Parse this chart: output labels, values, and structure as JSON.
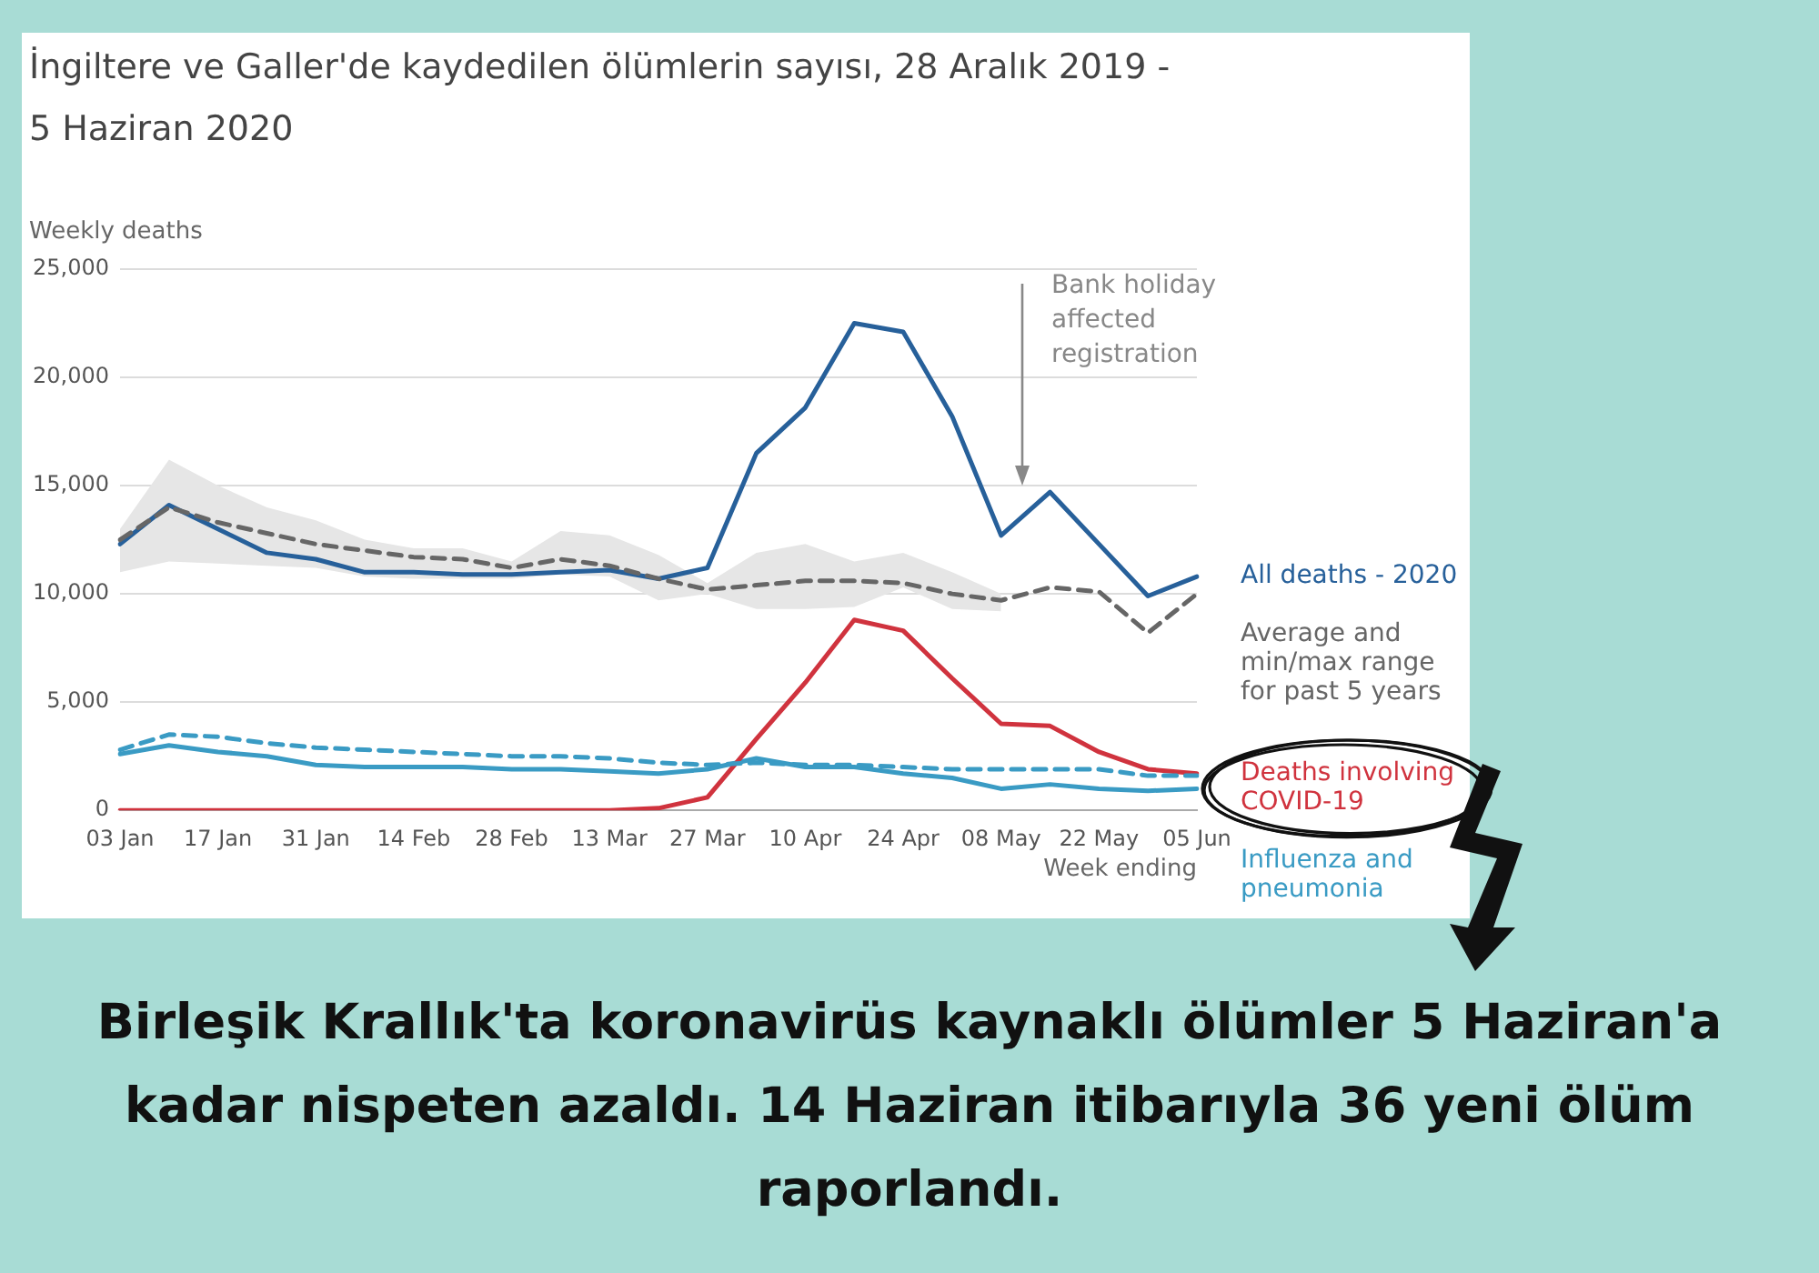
{
  "chart_data": {
    "type": "line",
    "title": "İngiltere ve Galler'de kaydedilen ölümlerin sayısı, 28 Aralık 2019 - 5 Haziran 2020",
    "ylabel": "Weekly deaths",
    "xlabel": "Week ending",
    "categories": [
      "03 Jan",
      null,
      "17 Jan",
      null,
      "31 Jan",
      null,
      "14 Feb",
      null,
      "28 Feb",
      null,
      "13 Mar",
      null,
      "27 Mar",
      null,
      "10 Apr",
      null,
      "24 Apr",
      null,
      "08 May",
      null,
      "22 May",
      null,
      "05 Jun"
    ],
    "series": [
      {
        "name": "Average and min/max range for past 5 years",
        "color": "#666666",
        "line_style": "dashed",
        "values": [
          12500,
          14000,
          13300,
          12800,
          12300,
          12000,
          11700,
          11600,
          11200,
          11600,
          11300,
          10700,
          10200,
          10400,
          10600,
          10600,
          10500,
          10000,
          9700,
          10300,
          10100,
          8200,
          10000
        ],
        "lower": [
          11000,
          11500,
          11400,
          11300,
          11200,
          10800,
          10700,
          10700,
          10700,
          10900,
          10800,
          9700,
          10000,
          9300,
          9300,
          9400,
          10300,
          9300,
          9200,
          null,
          null,
          null,
          null
        ],
        "upper": [
          13000,
          16200,
          15000,
          14000,
          13400,
          12500,
          12100,
          12100,
          11500,
          12900,
          12700,
          11800,
          10500,
          11900,
          12300,
          11500,
          11900,
          11000,
          10000,
          null,
          null,
          null,
          null
        ]
      },
      {
        "color": "#3a9bc4",
        "line_style": "dashed",
        "values": [
          2800,
          3500,
          3400,
          3100,
          2900,
          2800,
          2700,
          2600,
          2500,
          2500,
          2400,
          2200,
          2100,
          2200,
          2100,
          2100,
          2000,
          1900,
          1900,
          1900,
          1900,
          1600,
          1600
        ]
      },
      {
        "name": "All deaths - 2020",
        "color": "#27609a",
        "line_style": "solid",
        "values": [
          12300,
          14100,
          13000,
          11900,
          11600,
          11000,
          11000,
          10900,
          10900,
          11000,
          11100,
          10700,
          11200,
          16500,
          18600,
          22500,
          22100,
          18200,
          12700,
          14700,
          12300,
          9900,
          10800
        ]
      },
      {
        "name": "Deaths involving COVID-19",
        "color": "#d0333e",
        "line_style": "solid",
        "values": [
          0,
          0,
          0,
          0,
          0,
          0,
          0,
          0,
          0,
          0,
          0,
          100,
          600,
          3300,
          5900,
          8800,
          8300,
          6100,
          4000,
          3900,
          2700,
          1900,
          1700
        ]
      },
      {
        "name": "Influenza and pneumonia",
        "color": "#3a9bc4",
        "line_style": "solid",
        "values": [
          2600,
          3000,
          2700,
          2500,
          2100,
          2000,
          2000,
          2000,
          1900,
          1900,
          1800,
          1700,
          1900,
          2400,
          2000,
          2000,
          1700,
          1500,
          1000,
          1200,
          1000,
          900,
          1000
        ]
      }
    ],
    "ylim": [
      0,
      25000
    ],
    "yticks": [
      0,
      {
        "value": 5000,
        "label": "5,000"
      },
      {
        "value": 10000,
        "label": "10,000"
      },
      {
        "value": 15000,
        "label": "15,000"
      },
      {
        "value": 20000,
        "label": "20,000"
      },
      {
        "value": 25000,
        "label": "25,000"
      }
    ],
    "grid": "y",
    "legend": false,
    "marker": "none",
    "annotations": [
      "Bank holiday affected registration",
      "Birleşik Krallık'ta  koronavirüs kaynaklı ölümler 5 Haziran'a kadar nispeten azaldı. 14 Haziran itibarıyla 36 yeni ölüm raporlandı."
    ]
  }
}
